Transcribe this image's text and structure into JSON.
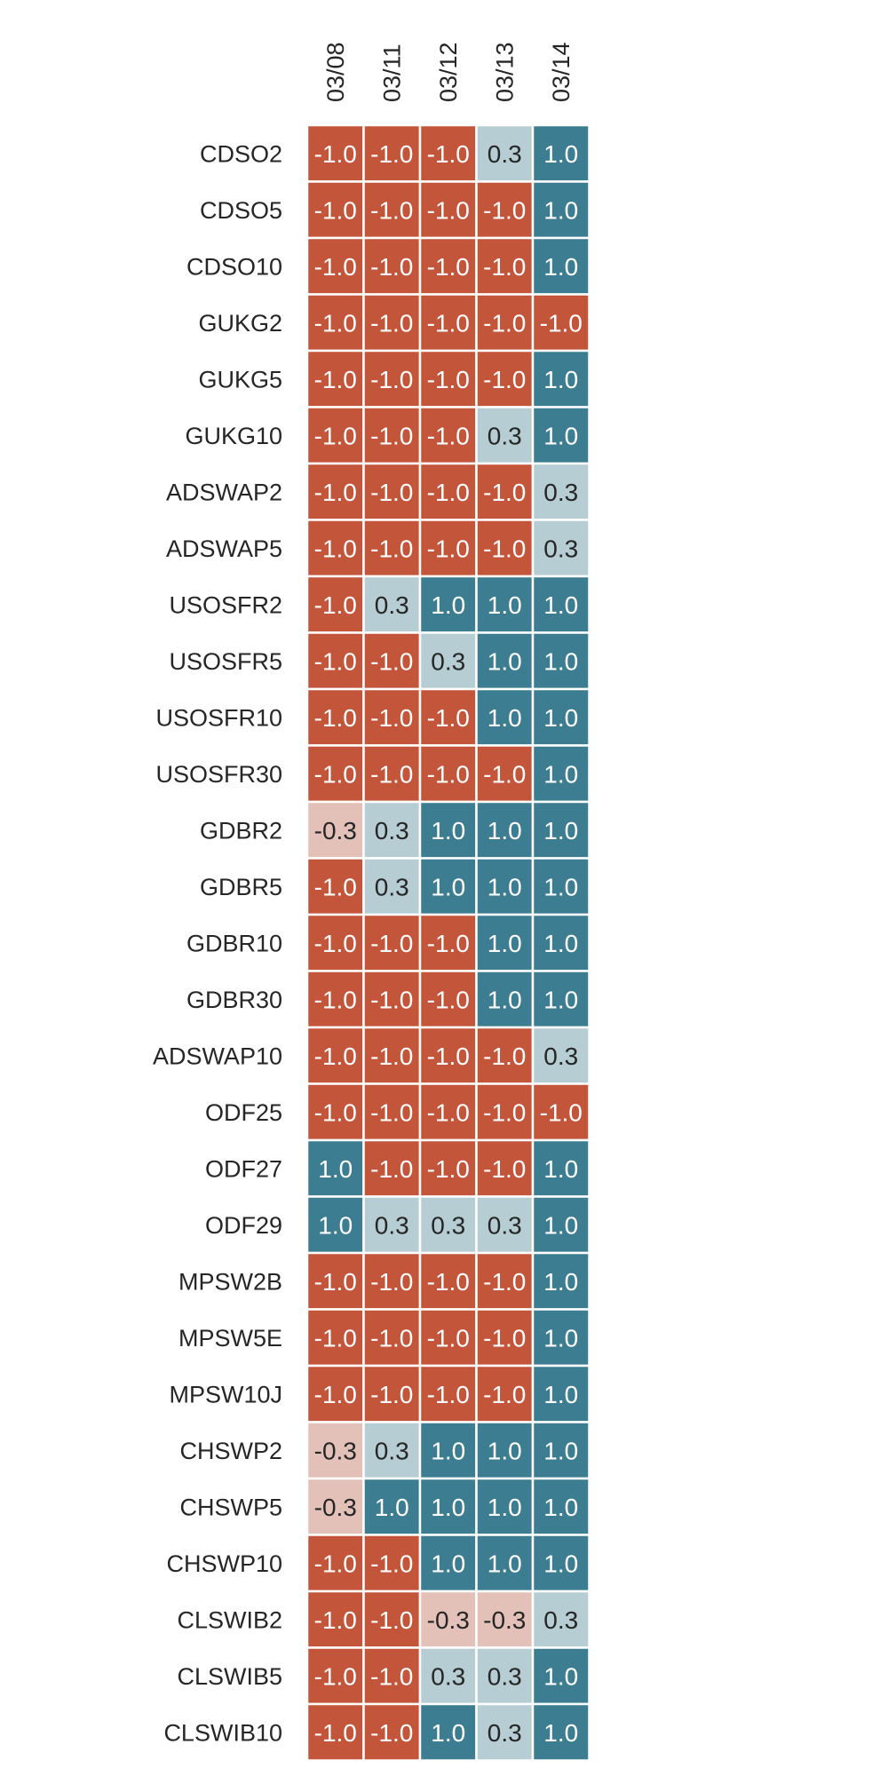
{
  "chart_data": {
    "type": "heatmap",
    "title": "",
    "xlabel": "",
    "ylabel": "",
    "columns": [
      "03/08",
      "03/11",
      "03/12",
      "03/13",
      "03/14"
    ],
    "rows": [
      "CDSO2",
      "CDSO5",
      "CDSO10",
      "GUKG2",
      "GUKG5",
      "GUKG10",
      "ADSWAP2",
      "ADSWAP5",
      "USOSFR2",
      "USOSFR5",
      "USOSFR10",
      "USOSFR30",
      "GDBR2",
      "GDBR5",
      "GDBR10",
      "GDBR30",
      "ADSWAP10",
      "ODF25",
      "ODF27",
      "ODF29",
      "MPSW2B",
      "MPSW5E",
      "MPSW10J",
      "CHSWP2",
      "CHSWP5",
      "CHSWP10",
      "CLSWIB2",
      "CLSWIB5",
      "CLSWIB10"
    ],
    "values": [
      [
        -1.0,
        -1.0,
        -1.0,
        0.3,
        1.0
      ],
      [
        -1.0,
        -1.0,
        -1.0,
        -1.0,
        1.0
      ],
      [
        -1.0,
        -1.0,
        -1.0,
        -1.0,
        1.0
      ],
      [
        -1.0,
        -1.0,
        -1.0,
        -1.0,
        -1.0
      ],
      [
        -1.0,
        -1.0,
        -1.0,
        -1.0,
        1.0
      ],
      [
        -1.0,
        -1.0,
        -1.0,
        0.3,
        1.0
      ],
      [
        -1.0,
        -1.0,
        -1.0,
        -1.0,
        0.3
      ],
      [
        -1.0,
        -1.0,
        -1.0,
        -1.0,
        0.3
      ],
      [
        -1.0,
        0.3,
        1.0,
        1.0,
        1.0
      ],
      [
        -1.0,
        -1.0,
        0.3,
        1.0,
        1.0
      ],
      [
        -1.0,
        -1.0,
        -1.0,
        1.0,
        1.0
      ],
      [
        -1.0,
        -1.0,
        -1.0,
        -1.0,
        1.0
      ],
      [
        -0.3,
        0.3,
        1.0,
        1.0,
        1.0
      ],
      [
        -1.0,
        0.3,
        1.0,
        1.0,
        1.0
      ],
      [
        -1.0,
        -1.0,
        -1.0,
        1.0,
        1.0
      ],
      [
        -1.0,
        -1.0,
        -1.0,
        1.0,
        1.0
      ],
      [
        -1.0,
        -1.0,
        -1.0,
        -1.0,
        0.3
      ],
      [
        -1.0,
        -1.0,
        -1.0,
        -1.0,
        -1.0
      ],
      [
        1.0,
        -1.0,
        -1.0,
        -1.0,
        1.0
      ],
      [
        1.0,
        0.3,
        0.3,
        0.3,
        1.0
      ],
      [
        -1.0,
        -1.0,
        -1.0,
        -1.0,
        1.0
      ],
      [
        -1.0,
        -1.0,
        -1.0,
        -1.0,
        1.0
      ],
      [
        -1.0,
        -1.0,
        -1.0,
        -1.0,
        1.0
      ],
      [
        -0.3,
        0.3,
        1.0,
        1.0,
        1.0
      ],
      [
        -0.3,
        1.0,
        1.0,
        1.0,
        1.0
      ],
      [
        -1.0,
        -1.0,
        1.0,
        1.0,
        1.0
      ],
      [
        -1.0,
        -1.0,
        -0.3,
        -0.3,
        0.3
      ],
      [
        -1.0,
        -1.0,
        0.3,
        0.3,
        1.0
      ],
      [
        -1.0,
        -1.0,
        1.0,
        0.3,
        1.0
      ]
    ],
    "value_format": "one decimal place",
    "colorbar": false,
    "colors": {
      "-1.0": "#c3553a",
      "-0.3": "#e4c1b8",
      "0.3": "#b6cdd4",
      "1.0": "#3d7d91"
    },
    "annotation_text_colors": {
      "dark_cell": "#ffffff",
      "light_cell": "#262626"
    },
    "cell_border_color": "#ffffff"
  }
}
